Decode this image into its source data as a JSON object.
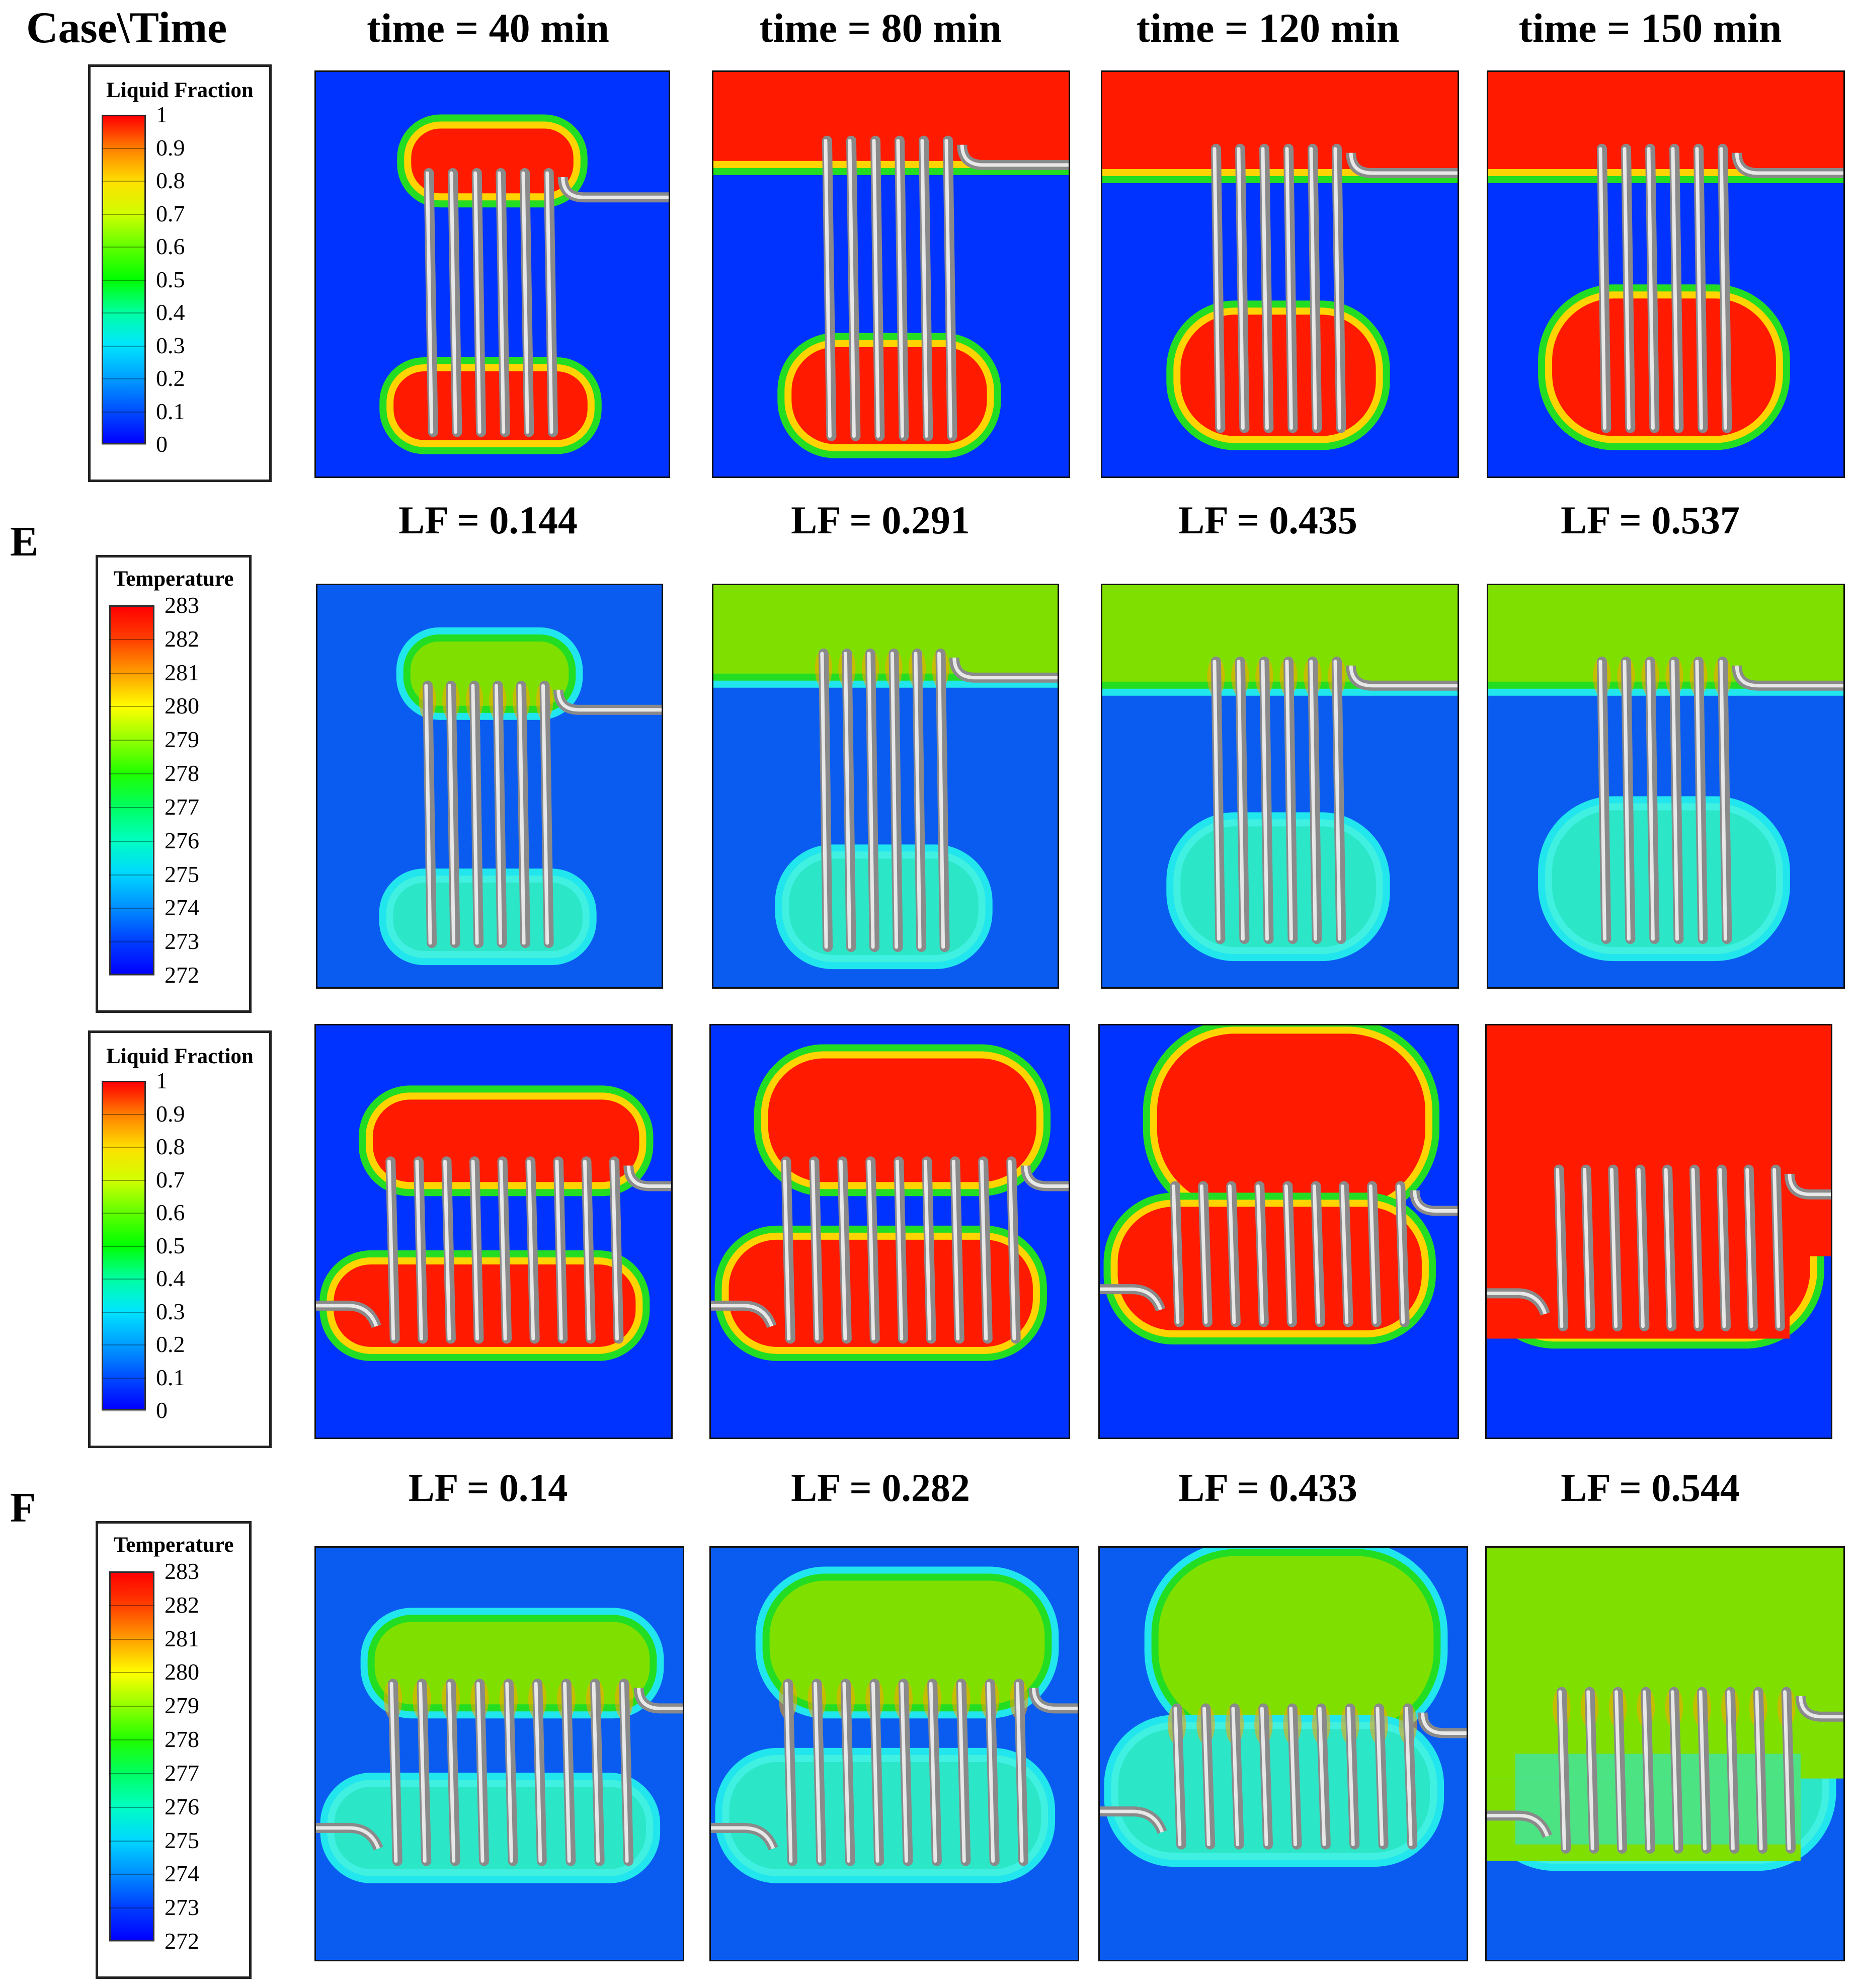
{
  "header": {
    "case_time": "Case\\Time",
    "times": [
      "time = 40 min",
      "time = 80 min",
      "time = 120 min",
      "time = 150 min"
    ]
  },
  "case_e": {
    "label": "E",
    "lf_values": [
      "LF = 0.144",
      "LF = 0.291",
      "LF = 0.435",
      "LF = 0.537"
    ]
  },
  "case_f": {
    "label": "F",
    "lf_values": [
      "LF = 0.14",
      "LF = 0.282",
      "LF = 0.433",
      "LF = 0.544"
    ]
  },
  "liquid_legend": {
    "title": "Liquid Fraction",
    "levels": [
      "1",
      "0.9",
      "0.8",
      "0.7",
      "0.6",
      "0.5",
      "0.4",
      "0.3",
      "0.2",
      "0.1",
      "0"
    ]
  },
  "temperature_legend": {
    "title": "Temperature",
    "levels": [
      "283",
      "282",
      "281",
      "280",
      "279",
      "278",
      "277",
      "276",
      "275",
      "274",
      "273",
      "272"
    ]
  },
  "colors": {
    "solid_blue": "#0033ff",
    "cold_blue": "#0a5cf0",
    "liquid_red": "#ff1a00",
    "green": "#22dd22",
    "cyan": "#22e6ee",
    "warm_green": "#7fe000",
    "yellow": "#ffd400",
    "orange": "#ffa000",
    "tube_gray": "#b8b8b8"
  }
}
